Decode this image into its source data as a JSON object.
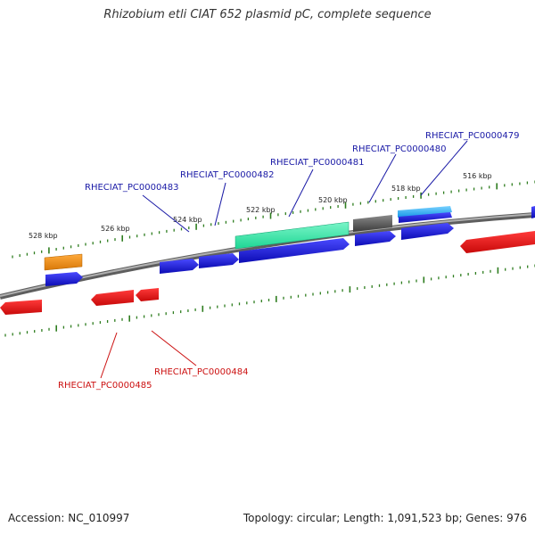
{
  "title": "Rhizobium etli CIAT 652 plasmid pC, complete sequence",
  "footer": {
    "accession": "Accession: NC_010997",
    "summary": "Topology: circular; Length: 1,091,523 bp; Genes: 976"
  },
  "colors": {
    "backbone": "#808080",
    "tick": "#2e7d1f",
    "forward_label": "#1a1aa6",
    "reverse_label": "#cc1111",
    "cds_blue": "#1414dc",
    "cds_red": "#e81414",
    "cds_orange": "#f08c14",
    "cds_green": "#28e6a0",
    "cds_gray": "#5a5a5a",
    "cds_cyan": "#1eaaf0"
  },
  "ruler": {
    "labels": [
      "528 kbp",
      "526 kbp",
      "524 kbp",
      "522 kbp",
      "520 kbp",
      "518 kbp",
      "516 kbp"
    ]
  },
  "gene_labels": {
    "forward": [
      "RHECIAT_PC0000483",
      "RHECIAT_PC0000482",
      "RHECIAT_PC0000481",
      "RHECIAT_PC0000480",
      "RHECIAT_PC0000479"
    ],
    "reverse": [
      "RHECIAT_PC0000485",
      "RHECIAT_PC0000484"
    ]
  },
  "features": [
    {
      "label": "RHECIAT_PC0000483",
      "color": "cds_blue"
    },
    {
      "label": "RHECIAT_PC0000482",
      "color": "cds_blue"
    },
    {
      "label": "RHECIAT_PC0000481",
      "color": "cds_blue"
    },
    {
      "label": "RHECIAT_PC0000480",
      "color": "cds_blue"
    },
    {
      "label": "RHECIAT_PC0000479",
      "color": "cds_blue"
    },
    {
      "label": "RHECIAT_PC0000484",
      "color": "cds_red"
    },
    {
      "label": "RHECIAT_PC0000485",
      "color": "cds_red"
    }
  ]
}
